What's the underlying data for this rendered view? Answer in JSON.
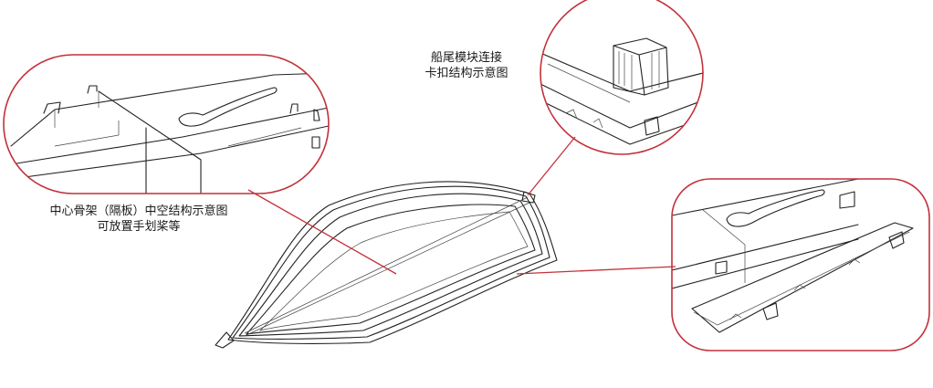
{
  "labels": {
    "tail_connector_line1": "船尾模块连接",
    "tail_connector_line2": "卡扣结构示意图",
    "center_frame_line1": "中心骨架（隔板）中空结构示意图",
    "center_frame_line2": "可放置手划桨等"
  },
  "colors": {
    "callout_frame": "#c3313a",
    "line_art": "#222222",
    "background": "#ffffff"
  }
}
